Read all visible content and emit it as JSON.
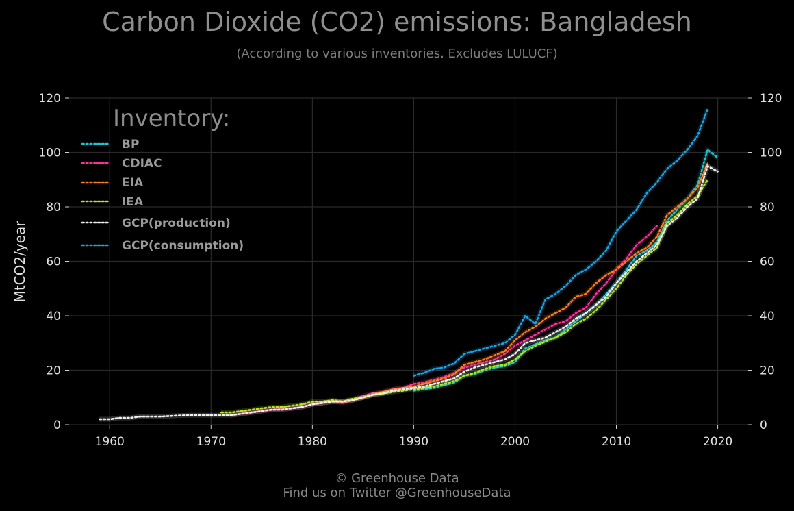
{
  "header": {
    "title": "Carbon Dioxide (CO2) emissions: Bangladesh",
    "subtitle": "(According to various inventories. Excludes LULUCF)"
  },
  "footer": {
    "line1": "© Greenhouse Data",
    "line2": "Find us on Twitter @GreenhouseData"
  },
  "colors": {
    "background": "#000000",
    "grid": "#2a2a2a"
  },
  "chart_data": {
    "type": "line",
    "title": "Carbon Dioxide (CO2) emissions: Bangladesh",
    "subtitle": "(According to various inventories. Excludes LULUCF)",
    "xlabel": "",
    "ylabel": "MtCO2/year",
    "xlim": [
      1956,
      2023
    ],
    "ylim": [
      0,
      120
    ],
    "x_ticks": [
      1960,
      1970,
      1980,
      1990,
      2000,
      2010,
      2020
    ],
    "y_ticks": [
      0,
      20,
      40,
      60,
      80,
      100,
      120
    ],
    "grid": true,
    "legend_title": "Inventory:",
    "legend_position": "top-left",
    "series": [
      {
        "name": "BP",
        "color": "#19c6d8",
        "x": [
          1990,
          1991,
          1992,
          1993,
          1994,
          1995,
          1996,
          1997,
          1998,
          1999,
          2000,
          2001,
          2002,
          2003,
          2004,
          2005,
          2006,
          2007,
          2008,
          2009,
          2010,
          2011,
          2012,
          2013,
          2014,
          2015,
          2016,
          2017,
          2018,
          2019,
          2020
        ],
        "y": [
          12.5,
          13,
          13.5,
          14.5,
          15.5,
          18,
          18.5,
          20,
          21,
          21.5,
          23,
          28,
          29.5,
          31,
          32,
          35,
          38,
          41,
          44,
          48,
          52,
          57,
          62,
          64,
          67,
          75,
          79,
          83,
          88,
          101,
          98
        ]
      },
      {
        "name": "CDIAC",
        "color": "#ff2f9a",
        "x": [
          1972,
          1973,
          1974,
          1975,
          1976,
          1977,
          1978,
          1979,
          1980,
          1981,
          1982,
          1983,
          1984,
          1985,
          1986,
          1987,
          1988,
          1989,
          1990,
          1991,
          1992,
          1993,
          1994,
          1995,
          1996,
          1997,
          1998,
          1999,
          2000,
          2001,
          2002,
          2003,
          2004,
          2005,
          2006,
          2007,
          2008,
          2009,
          2010,
          2011,
          2012,
          2013,
          2014
        ],
        "y": [
          3.5,
          4,
          4.5,
          5,
          5.5,
          5.8,
          6,
          6.5,
          7.5,
          8,
          8.5,
          8,
          9,
          10.5,
          11.5,
          12,
          13,
          13.5,
          15,
          15.5,
          16.5,
          17.5,
          19,
          21,
          22,
          23,
          24,
          26,
          29,
          31,
          33,
          35,
          37,
          38,
          41,
          43,
          48,
          52,
          57,
          61,
          66,
          69,
          73
        ]
      },
      {
        "name": "EIA",
        "color": "#ff7c1a",
        "x": [
          1980,
          1981,
          1982,
          1983,
          1984,
          1985,
          1986,
          1987,
          1988,
          1989,
          1990,
          1991,
          1992,
          1993,
          1994,
          1995,
          1996,
          1997,
          1998,
          1999,
          2000,
          2001,
          2002,
          2003,
          2004,
          2005,
          2006,
          2007,
          2008,
          2009,
          2010,
          2011,
          2012,
          2013,
          2014,
          2015,
          2016,
          2017,
          2018,
          2019
        ],
        "y": [
          7.5,
          8,
          8.5,
          8.5,
          9,
          10,
          11,
          12,
          13,
          13.5,
          14,
          15,
          16,
          17,
          18.5,
          22,
          23,
          24,
          25.5,
          27,
          31,
          34,
          36,
          39,
          41,
          43,
          47,
          48,
          52,
          55,
          57,
          60,
          63,
          65,
          69,
          77,
          80,
          83,
          87,
          96
        ]
      },
      {
        "name": "IEA",
        "color": "#b5e61d",
        "x": [
          1971,
          1972,
          1973,
          1974,
          1975,
          1976,
          1977,
          1978,
          1979,
          1980,
          1981,
          1982,
          1983,
          1984,
          1985,
          1986,
          1987,
          1988,
          1989,
          1990,
          1991,
          1992,
          1993,
          1994,
          1995,
          1996,
          1997,
          1998,
          1999,
          2000,
          2001,
          2002,
          2003,
          2004,
          2005,
          2006,
          2007,
          2008,
          2009,
          2010,
          2011,
          2012,
          2013,
          2014,
          2015,
          2016,
          2017,
          2018,
          2019
        ],
        "y": [
          4.5,
          4.5,
          5,
          5.5,
          6,
          6.5,
          6.5,
          7,
          7.5,
          8.5,
          8.5,
          9,
          8.5,
          9.5,
          10,
          11,
          11.5,
          12,
          12.5,
          13,
          13.5,
          14,
          15,
          16,
          18,
          19,
          20.5,
          21.5,
          22,
          24,
          27,
          29,
          30.5,
          32,
          34,
          37,
          39,
          42,
          46,
          50,
          55,
          59,
          62,
          65,
          74,
          77,
          81,
          84,
          90
        ]
      },
      {
        "name": "GCP(production)",
        "color": "#f0f0f0",
        "x": [
          1959,
          1960,
          1961,
          1962,
          1963,
          1964,
          1965,
          1966,
          1967,
          1968,
          1969,
          1970,
          1971,
          1972,
          1973,
          1974,
          1975,
          1976,
          1977,
          1978,
          1979,
          1980,
          1981,
          1982,
          1983,
          1984,
          1985,
          1986,
          1987,
          1988,
          1989,
          1990,
          1991,
          1992,
          1993,
          1994,
          1995,
          1996,
          1997,
          1998,
          1999,
          2000,
          2001,
          2002,
          2003,
          2004,
          2005,
          2006,
          2007,
          2008,
          2009,
          2010,
          2011,
          2012,
          2013,
          2014,
          2015,
          2016,
          2017,
          2018,
          2019,
          2020
        ],
        "y": [
          2,
          2,
          2.5,
          2.5,
          3,
          3,
          3,
          3.2,
          3.4,
          3.5,
          3.5,
          3.5,
          3.5,
          3.5,
          4,
          4.5,
          5,
          5.5,
          5.5,
          6,
          6.5,
          7.5,
          8,
          8.5,
          8.5,
          9,
          10,
          11,
          11.5,
          12.5,
          13,
          13.5,
          14,
          15,
          16,
          17,
          19.5,
          21,
          22,
          23,
          24,
          26,
          30,
          31,
          32,
          34,
          36,
          39,
          41,
          44,
          47,
          52,
          56,
          60,
          63,
          66,
          73,
          76,
          80,
          83,
          95,
          93
        ]
      },
      {
        "name": "GCP(consumption)",
        "color": "#1ea4e6",
        "x": [
          1990,
          1991,
          1992,
          1993,
          1994,
          1995,
          1996,
          1997,
          1998,
          1999,
          2000,
          2001,
          2002,
          2003,
          2004,
          2005,
          2006,
          2007,
          2008,
          2009,
          2010,
          2011,
          2012,
          2013,
          2014,
          2015,
          2016,
          2017,
          2018,
          2019
        ],
        "y": [
          18,
          19,
          20.5,
          21,
          22.5,
          26,
          27,
          28,
          29,
          30,
          33,
          40,
          37,
          46,
          48,
          51,
          55,
          57,
          60,
          64,
          71,
          75,
          79,
          85,
          89,
          94,
          97,
          101,
          106,
          116
        ]
      }
    ]
  }
}
